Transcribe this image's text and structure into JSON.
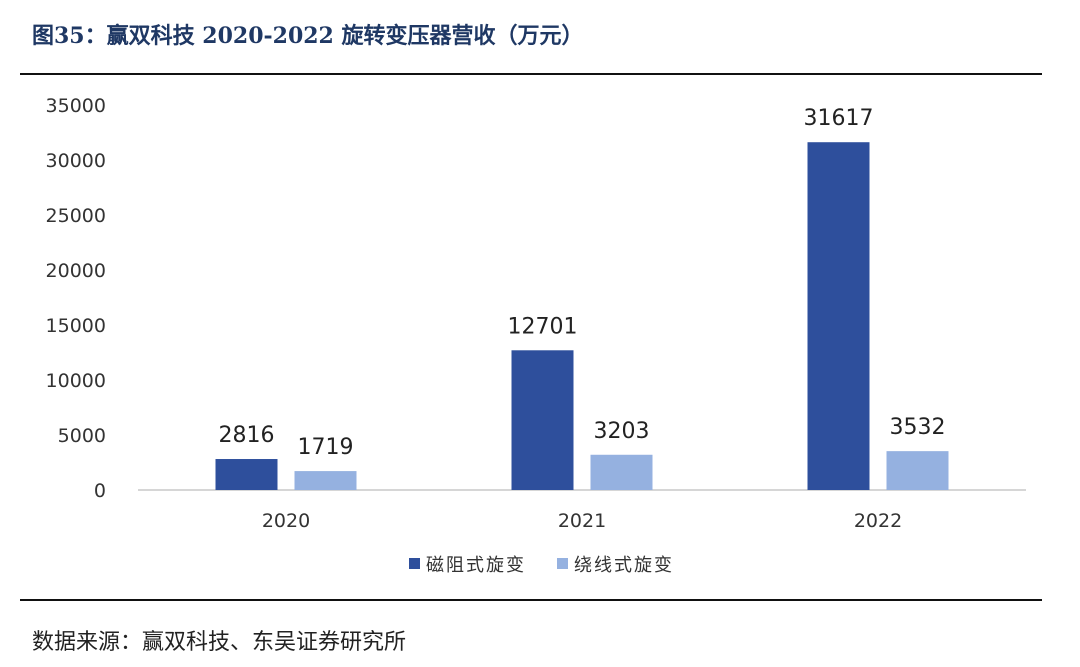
{
  "header": {
    "title": "图35：赢双科技 2020-2022 旋转变压器营收（万元）"
  },
  "footer": {
    "source": "数据来源：赢双科技、东吴证券研究所"
  },
  "chart_data": {
    "type": "bar",
    "title": "",
    "xlabel": "",
    "ylabel": "",
    "categories": [
      "2020",
      "2021",
      "2022"
    ],
    "ylim": [
      0,
      35000
    ],
    "yticks": [
      0,
      5000,
      10000,
      15000,
      20000,
      25000,
      30000,
      35000
    ],
    "grid": false,
    "legend_position": "bottom-center",
    "data_labels": true,
    "series": [
      {
        "name": "磁阻式旋变",
        "color": "#2e4f9c",
        "values": [
          2816,
          12701,
          31617
        ]
      },
      {
        "name": "绕线式旋变",
        "color": "#95b1e0",
        "values": [
          1719,
          3203,
          3532
        ]
      }
    ]
  }
}
